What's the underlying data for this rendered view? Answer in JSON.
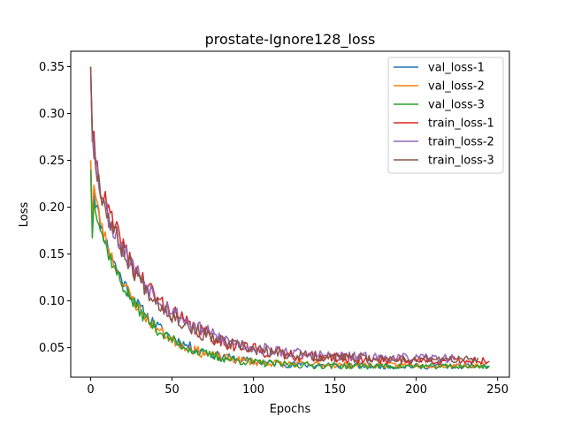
{
  "chart_data": {
    "type": "line",
    "title": "prostate-Ignore128_loss",
    "xlabel": "Epochs",
    "ylabel": "Loss",
    "xlim": [
      -12.25,
      257.25
    ],
    "ylim": [
      0.0185,
      0.3665
    ],
    "xticks": [
      0,
      50,
      100,
      150,
      200,
      250
    ],
    "yticks": [
      0.05,
      0.1,
      0.15,
      0.2,
      0.25,
      0.3,
      0.35
    ],
    "xtick_labels": [
      "0",
      "50",
      "100",
      "150",
      "200",
      "250"
    ],
    "ytick_labels": [
      "0.05",
      "0.10",
      "0.15",
      "0.20",
      "0.25",
      "0.30",
      "0.35"
    ],
    "legend_position": "top-right",
    "grid": false,
    "series": [
      {
        "name": "val_loss-1",
        "color": "#1f77b4",
        "epochs": 245,
        "start": 0.25,
        "decay": 0.185,
        "tau": 28,
        "floor": 0.03,
        "noise": 0.004,
        "seed": 11
      },
      {
        "name": "val_loss-2",
        "color": "#ff7f0e",
        "epochs": 243,
        "start": 0.25,
        "decay": 0.19,
        "tau": 26,
        "floor": 0.031,
        "noise": 0.004,
        "seed": 23
      },
      {
        "name": "val_loss-3",
        "color": "#2ca02c",
        "epochs": 246,
        "start": 0.24,
        "decay": 0.18,
        "tau": 27,
        "floor": 0.03,
        "noise": 0.004,
        "seed": 37
      },
      {
        "name": "train_loss-1",
        "color": "#d62728",
        "epochs": 246,
        "start": 0.35,
        "decay": 0.215,
        "tau": 35,
        "floor": 0.036,
        "noise": 0.0065,
        "seed": 41
      },
      {
        "name": "train_loss-2",
        "color": "#9467bd",
        "epochs": 225,
        "start": 0.34,
        "decay": 0.205,
        "tau": 36,
        "floor": 0.038,
        "noise": 0.0065,
        "seed": 53
      },
      {
        "name": "train_loss-3",
        "color": "#8c564b",
        "epochs": 239,
        "start": 0.35,
        "decay": 0.21,
        "tau": 34,
        "floor": 0.037,
        "noise": 0.006,
        "seed": 67
      }
    ]
  }
}
